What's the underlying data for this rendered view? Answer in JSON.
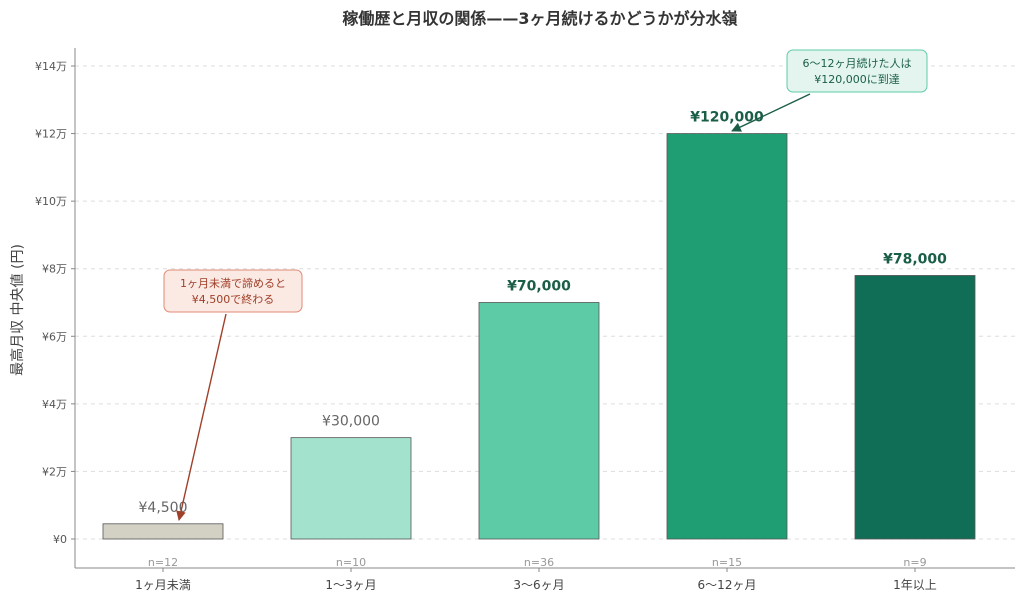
{
  "chart_data": {
    "type": "bar",
    "title": "稼働歴と月収の関係——3ヶ月続けるかどうかが分水嶺",
    "xlabel": "",
    "ylabel": "最高月収 中央値 (円)",
    "ylim": [
      0,
      145000
    ],
    "yticks": [
      {
        "value": 0,
        "label": "¥0"
      },
      {
        "value": 20000,
        "label": "¥2万"
      },
      {
        "value": 40000,
        "label": "¥4万"
      },
      {
        "value": 60000,
        "label": "¥6万"
      },
      {
        "value": 80000,
        "label": "¥8万"
      },
      {
        "value": 100000,
        "label": "¥10万"
      },
      {
        "value": 120000,
        "label": "¥12万"
      },
      {
        "value": 140000,
        "label": "¥14万"
      }
    ],
    "grid": true,
    "categories": [
      "1ヶ月未満",
      "1〜3ヶ月",
      "3〜6ヶ月",
      "6〜12ヶ月",
      "1年以上"
    ],
    "values": [
      4500,
      30000,
      70000,
      120000,
      78000
    ],
    "value_labels": [
      "¥4,500",
      "¥30,000",
      "¥70,000",
      "¥120,000",
      "¥78,000"
    ],
    "n_labels": [
      "n=12",
      "n=10",
      "n=36",
      "n=15",
      "n=9"
    ],
    "colors": [
      "#d3d0c4",
      "#a3e2cc",
      "#5ecba7",
      "#1f9e74",
      "#0f6e55"
    ],
    "label_colors": [
      "#666666",
      "#666666",
      "#1b5e48",
      "#1b5e48",
      "#1b5e48"
    ],
    "label_bold": [
      false,
      false,
      true,
      true,
      true
    ],
    "annotations": [
      {
        "lines": [
          "1ヶ月未満で諦めると",
          "¥4,500で終わる"
        ],
        "bar_index": 0,
        "color": "#a0402a",
        "bg": "#fbe9e3",
        "border": "#e08a74"
      },
      {
        "lines": [
          "6〜12ヶ月続けた人は",
          "¥120,000に到達"
        ],
        "bar_index": 3,
        "color": "#1b5e48",
        "bg": "#e3f5ee",
        "border": "#5ecba7"
      }
    ]
  }
}
